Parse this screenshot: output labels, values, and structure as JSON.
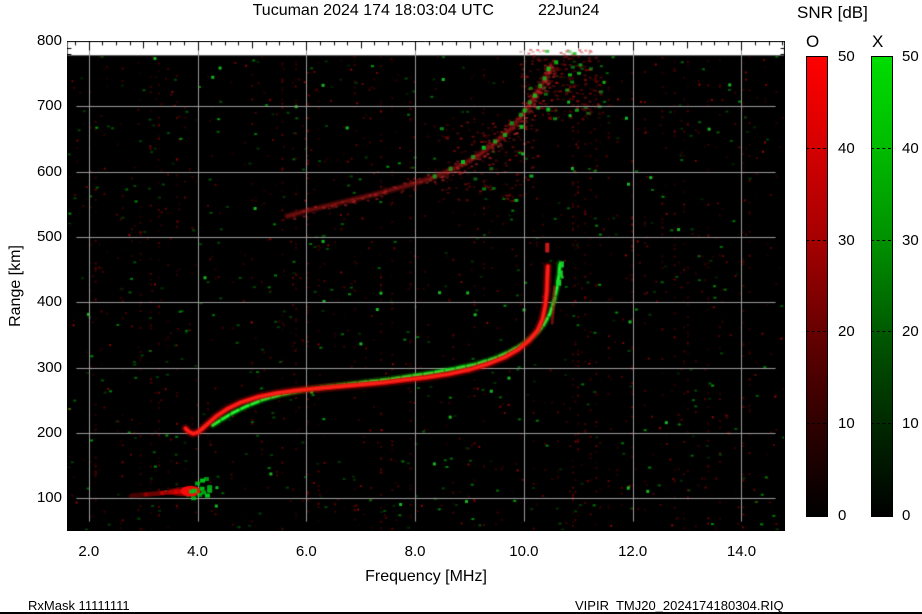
{
  "chart_data": {
    "type": "heatmap",
    "variant": "ionogram",
    "title": "Tucuman 2024 174 18:03:04 UTC",
    "date_label": "22Jun24",
    "xlabel": "Frequency [MHz]",
    "ylabel": "Range [km]",
    "xlim": [
      1.6,
      14.8
    ],
    "ylim": [
      50,
      800
    ],
    "data_top_km": 778,
    "grid": true,
    "grid_color": "#9a9a9a",
    "bg_color": "#000000",
    "x_ticks": {
      "values": [
        2,
        4,
        6,
        8,
        10,
        12,
        14
      ],
      "labels": [
        "2.0",
        "4.0",
        "6.0",
        "8.0",
        "10.0",
        "12.0",
        "14.0"
      ],
      "minor_step": 0.25
    },
    "y_ticks": {
      "values": [
        100,
        200,
        300,
        400,
        500,
        600,
        700,
        800
      ],
      "labels": [
        "100",
        "200",
        "300",
        "400",
        "500",
        "600",
        "700",
        "800"
      ],
      "minor_step": 10
    },
    "series": [
      {
        "name": "o-mode-first-hop",
        "mode": "O",
        "color": "#e61414",
        "points": [
          [
            3.78,
            207
          ],
          [
            3.84,
            202
          ],
          [
            3.92,
            199
          ],
          [
            4.0,
            201
          ],
          [
            4.08,
            206
          ],
          [
            4.2,
            215
          ],
          [
            4.35,
            226
          ],
          [
            4.55,
            237
          ],
          [
            4.8,
            247
          ],
          [
            5.1,
            255
          ],
          [
            5.45,
            261
          ],
          [
            5.8,
            265
          ],
          [
            6.2,
            268
          ],
          [
            6.6,
            271
          ],
          [
            7.0,
            274
          ],
          [
            7.4,
            277
          ],
          [
            7.8,
            281
          ],
          [
            8.2,
            285
          ],
          [
            8.6,
            290
          ],
          [
            9.0,
            297
          ],
          [
            9.35,
            306
          ],
          [
            9.65,
            316
          ],
          [
            9.9,
            328
          ],
          [
            10.1,
            342
          ],
          [
            10.25,
            357
          ],
          [
            10.34,
            374
          ],
          [
            10.39,
            394
          ],
          [
            10.42,
            416
          ],
          [
            10.43,
            438
          ],
          [
            10.44,
            455
          ]
        ]
      },
      {
        "name": "x-mode-first-hop",
        "mode": "X",
        "color": "#00c414",
        "points": [
          [
            4.28,
            212
          ],
          [
            4.45,
            221
          ],
          [
            4.65,
            231
          ],
          [
            4.9,
            241
          ],
          [
            5.2,
            251
          ],
          [
            5.55,
            259
          ],
          [
            5.9,
            265
          ],
          [
            6.3,
            270
          ],
          [
            6.7,
            274
          ],
          [
            7.1,
            278
          ],
          [
            7.5,
            282
          ],
          [
            7.9,
            287
          ],
          [
            8.3,
            292
          ],
          [
            8.7,
            298
          ],
          [
            9.1,
            305
          ],
          [
            9.45,
            314
          ],
          [
            9.75,
            325
          ],
          [
            10.0,
            337
          ],
          [
            10.2,
            350
          ],
          [
            10.36,
            365
          ],
          [
            10.48,
            383
          ],
          [
            10.56,
            404
          ],
          [
            10.62,
            427
          ],
          [
            10.65,
            446
          ],
          [
            10.66,
            460
          ]
        ]
      },
      {
        "name": "e-layer-trace",
        "mode": "O",
        "color": "#e00000",
        "points": [
          [
            2.78,
            104
          ],
          [
            3.05,
            106
          ],
          [
            3.35,
            108
          ],
          [
            3.6,
            110
          ],
          [
            3.82,
            111
          ],
          [
            4.0,
            112
          ]
        ]
      },
      {
        "name": "e-layer-x-patch",
        "mode": "X",
        "color": "#00c818",
        "points": [
          [
            3.82,
            112
          ],
          [
            3.9,
            117
          ],
          [
            3.95,
            124
          ],
          [
            3.98,
            109
          ],
          [
            4.03,
            119
          ],
          [
            4.08,
            113
          ],
          [
            4.12,
            107
          ],
          [
            4.16,
            121
          ],
          [
            4.2,
            114
          ],
          [
            3.88,
            105
          ],
          [
            4.05,
            128
          ],
          [
            4.1,
            131
          ]
        ]
      },
      {
        "name": "second-hop-o-diffuse",
        "mode": "O",
        "color": "#b42020",
        "points": [
          [
            5.65,
            532
          ],
          [
            6.0,
            540
          ],
          [
            6.4,
            548
          ],
          [
            6.8,
            556
          ],
          [
            7.2,
            564
          ],
          [
            7.6,
            573
          ],
          [
            8.0,
            582
          ],
          [
            8.35,
            592
          ],
          [
            8.7,
            604
          ],
          [
            9.0,
            617
          ],
          [
            9.3,
            633
          ],
          [
            9.55,
            650
          ],
          [
            9.8,
            668
          ],
          [
            10.0,
            690
          ],
          [
            10.15,
            708
          ],
          [
            10.3,
            728
          ],
          [
            10.42,
            748
          ],
          [
            10.5,
            762
          ]
        ]
      },
      {
        "name": "second-hop-x-speckles",
        "mode": "X",
        "color": "#00be1e",
        "points": [
          [
            8.35,
            598
          ],
          [
            8.6,
            607
          ],
          [
            8.85,
            615
          ],
          [
            9.05,
            628
          ],
          [
            9.25,
            642
          ],
          [
            9.45,
            652
          ],
          [
            9.6,
            662
          ],
          [
            9.75,
            676
          ],
          [
            9.9,
            688
          ],
          [
            10.0,
            699
          ],
          [
            10.1,
            710
          ],
          [
            10.2,
            722
          ],
          [
            10.28,
            735
          ],
          [
            10.35,
            748
          ],
          [
            10.45,
            757
          ],
          [
            10.55,
            768
          ],
          [
            9.95,
            672
          ],
          [
            10.42,
            700
          ]
        ]
      },
      {
        "name": "o-spread-branch",
        "mode": "O",
        "color": "#c81414",
        "points": [
          [
            10.52,
            368
          ],
          [
            10.55,
            398
          ],
          [
            10.56,
            424
          ]
        ]
      },
      {
        "name": "o-top-dot",
        "mode": "O",
        "color": "#e61414",
        "points": [
          [
            10.43,
            481
          ],
          [
            10.43,
            491
          ]
        ]
      },
      {
        "name": "x-top-dots",
        "mode": "X",
        "color": "#14dc28",
        "points": [
          [
            10.63,
            430
          ],
          [
            10.66,
            444
          ],
          [
            10.68,
            458
          ]
        ]
      }
    ],
    "noise_clouds": [
      {
        "name": "second-hop-spread-top",
        "f": [
          9.9,
          11.4
        ],
        "km": [
          680,
          788
        ],
        "n_red": 230,
        "n_green": 22
      },
      {
        "name": "second-hop-halo",
        "f": [
          8.4,
          10.3
        ],
        "km": [
          555,
          680
        ],
        "n_red": 150,
        "n_green": 8
      }
    ],
    "colorbar": {
      "title": "SNR [dB]",
      "o_label": "O",
      "x_label": "X",
      "tick_values": [
        50,
        40,
        30,
        20,
        10,
        0
      ],
      "tick_labels": [
        "50",
        "40",
        "30",
        "20",
        "10",
        "0"
      ],
      "range": [
        0,
        50
      ],
      "o_color_top": "#ff0000",
      "x_color_top": "#00dd00"
    },
    "footer": {
      "rx_mask": "RxMask 11111111",
      "file_label": "VIPIR  TMJ20_2024174180304.RIQ"
    }
  }
}
